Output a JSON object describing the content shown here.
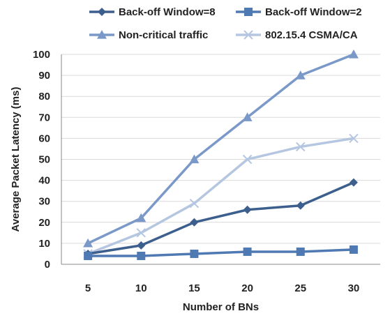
{
  "chart_data": {
    "type": "line",
    "title": "",
    "xlabel": "Number of BNs",
    "ylabel": "Average Packet Latency (ms)",
    "categories": [
      5,
      10,
      15,
      20,
      25,
      30
    ],
    "ylim": [
      0,
      100
    ],
    "yticks": [
      0,
      10,
      20,
      30,
      40,
      50,
      60,
      70,
      80,
      90,
      100
    ],
    "grid": "horizontal",
    "legend_position": "top",
    "series": [
      {
        "name": "Back-off Window=8",
        "marker": "diamond",
        "color": "#3d5f8e",
        "values": [
          5,
          9,
          20,
          26,
          28,
          39
        ]
      },
      {
        "name": "Back-off Window=2",
        "marker": "square",
        "color": "#4f79b3",
        "values": [
          4,
          4,
          5,
          6,
          6,
          7
        ]
      },
      {
        "name": "Non-critical traffic",
        "marker": "triangle",
        "color": "#7a99c8",
        "values": [
          10,
          22,
          50,
          70,
          90,
          100
        ]
      },
      {
        "name": "802.15.4 CSMA/CA",
        "marker": "x",
        "color": "#b5c6e0",
        "values": [
          5,
          15,
          29,
          50,
          56,
          60
        ]
      }
    ]
  }
}
